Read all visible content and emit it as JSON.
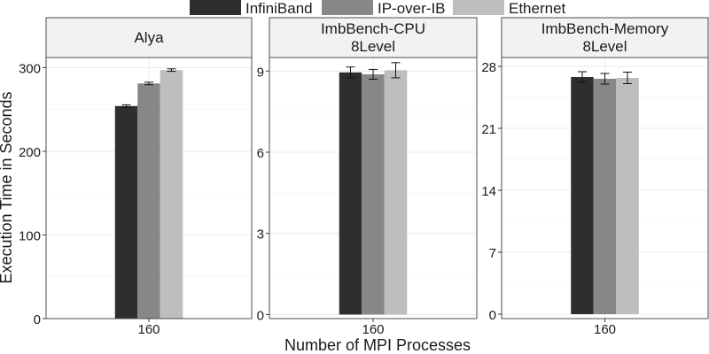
{
  "chart_data": {
    "type": "bar",
    "xlabel": "Number of MPI Processes",
    "ylabel": "Execution Time in Seconds",
    "legend": {
      "position": "top",
      "entries": [
        {
          "name": "InfiniBand",
          "color": "#2e2e2e"
        },
        {
          "name": "IP-over-IB",
          "color": "#878787"
        },
        {
          "name": "Ethernet",
          "color": "#bebebe"
        }
      ]
    },
    "grid": true,
    "facets": [
      {
        "title": [
          "Alya"
        ],
        "categories": [
          "160"
        ],
        "ylim": [
          0,
          312
        ],
        "yticks": [
          0,
          100,
          200,
          300
        ],
        "series": [
          {
            "name": "InfiniBand",
            "values": [
              254
            ],
            "error": [
              1.5
            ]
          },
          {
            "name": "IP-over-IB",
            "values": [
              281
            ],
            "error": [
              1.5
            ]
          },
          {
            "name": "Ethernet",
            "values": [
              297
            ],
            "error": [
              1.5
            ]
          }
        ]
      },
      {
        "title": [
          "ImbBench-CPU",
          "8Level"
        ],
        "categories": [
          "160"
        ],
        "ylim": [
          -0.15,
          9.5
        ],
        "yticks": [
          0,
          3,
          6,
          9
        ],
        "series": [
          {
            "name": "InfiniBand",
            "values": [
              8.95
            ],
            "error": [
              0.2
            ]
          },
          {
            "name": "IP-over-IB",
            "values": [
              8.88
            ],
            "error": [
              0.18
            ]
          },
          {
            "name": "Ethernet",
            "values": [
              9.03
            ],
            "error": [
              0.28
            ]
          }
        ]
      },
      {
        "title": [
          "ImbBench-Memory",
          "8Level"
        ],
        "categories": [
          "160"
        ],
        "ylim": [
          -0.5,
          29
        ],
        "yticks": [
          0,
          7,
          14,
          21,
          28
        ],
        "series": [
          {
            "name": "InfiniBand",
            "values": [
              26.8
            ],
            "error": [
              0.6
            ]
          },
          {
            "name": "IP-over-IB",
            "values": [
              26.6
            ],
            "error": [
              0.6
            ]
          },
          {
            "name": "Ethernet",
            "values": [
              26.7
            ],
            "error": [
              0.65
            ]
          }
        ]
      }
    ]
  }
}
